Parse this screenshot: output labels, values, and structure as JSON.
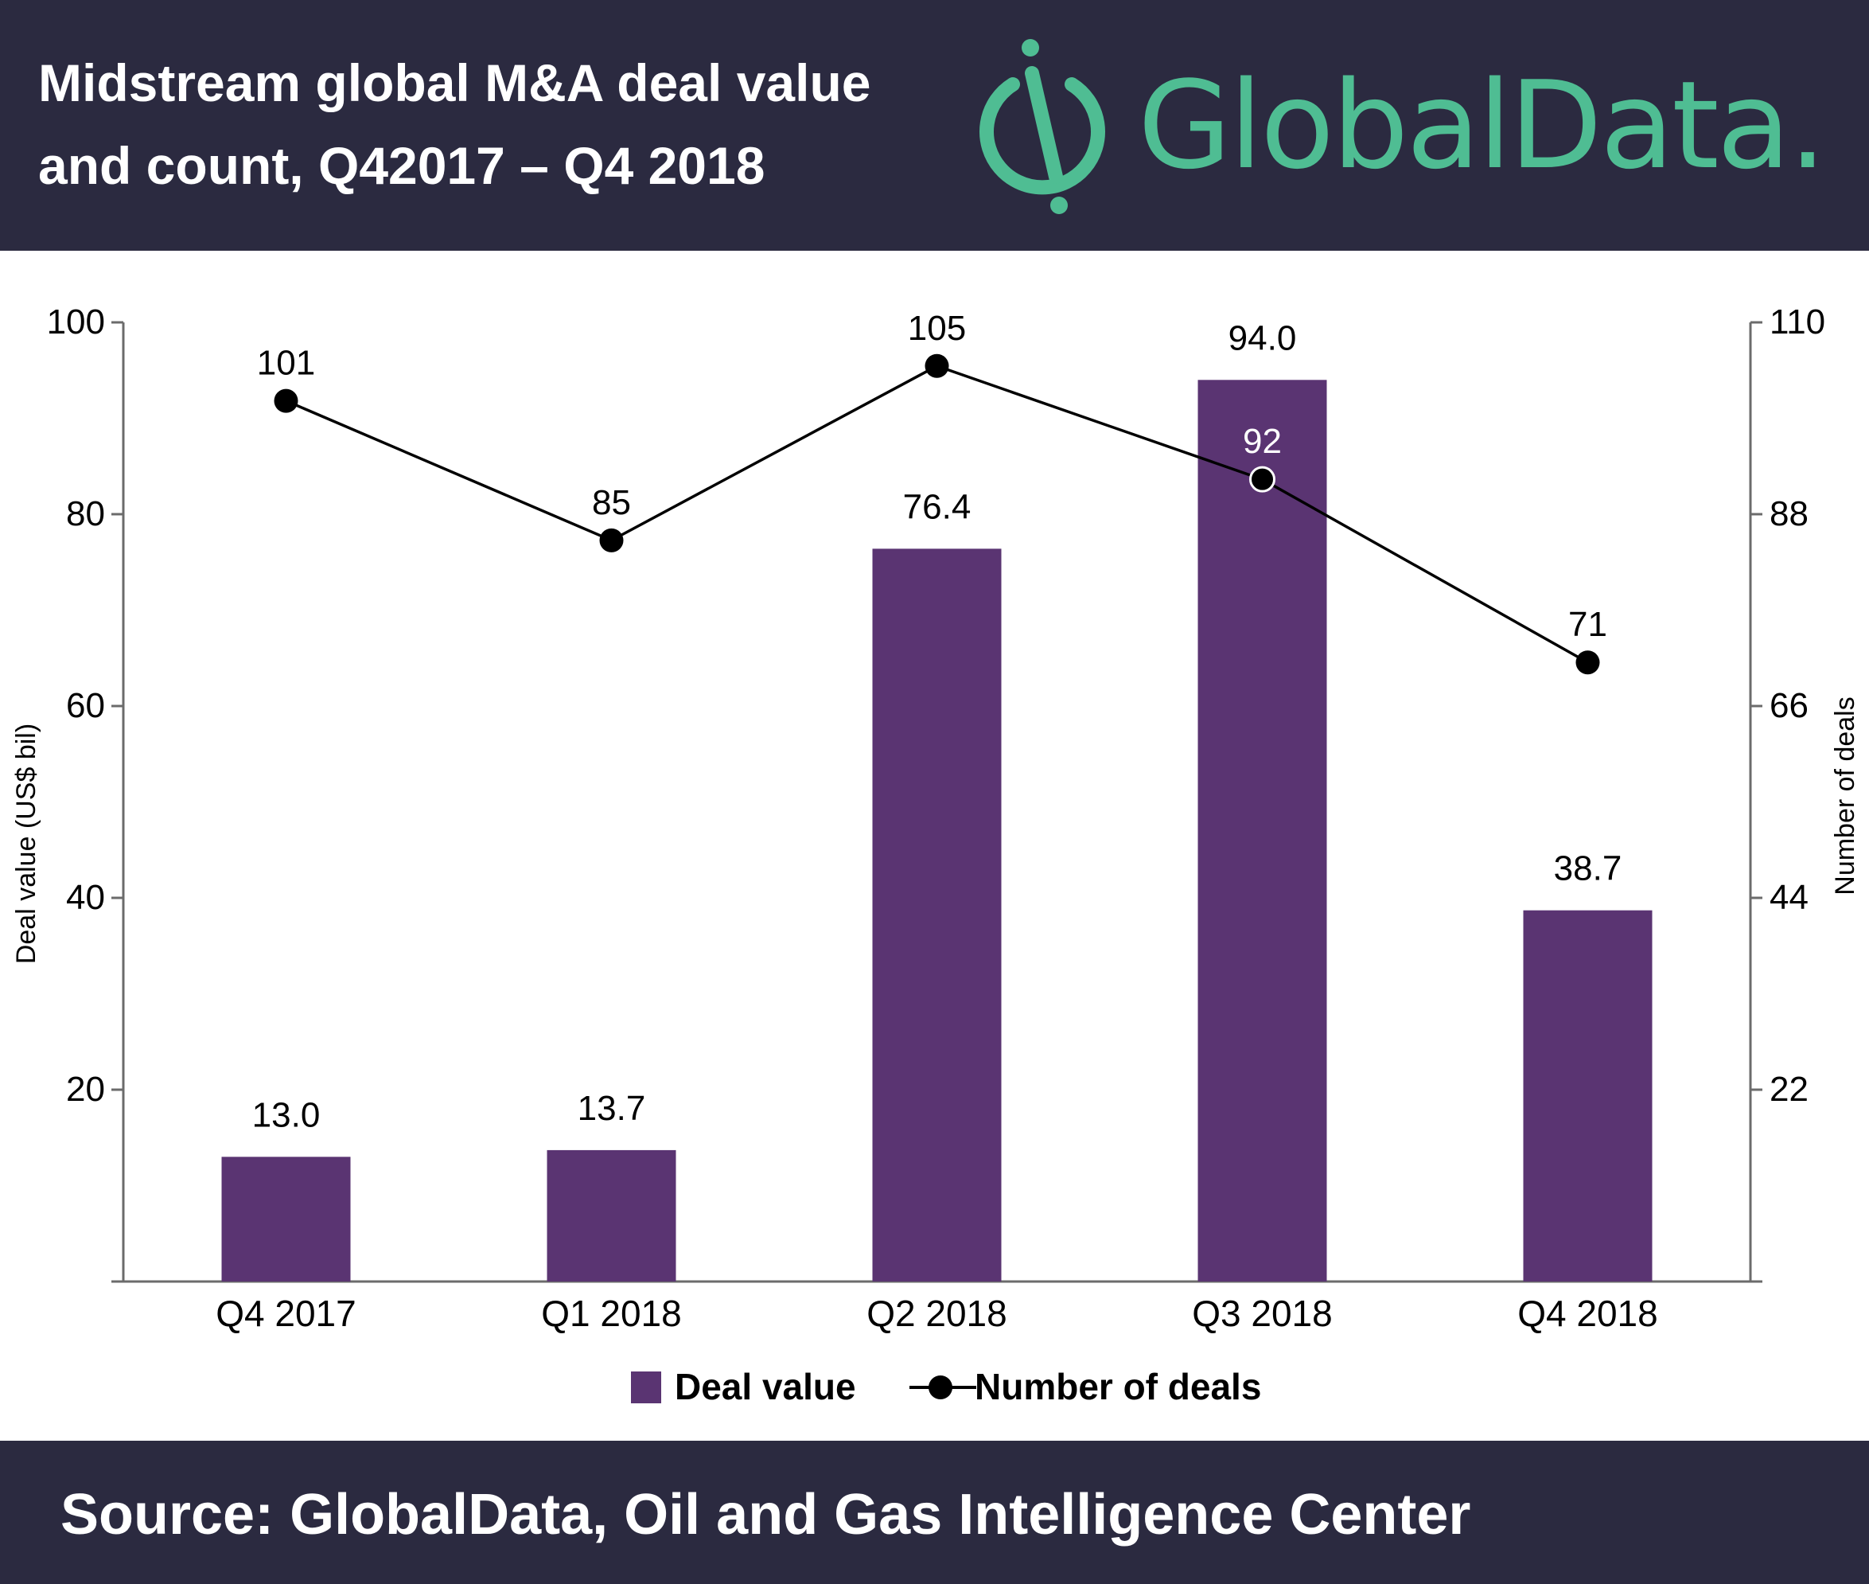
{
  "header": {
    "title_line1": "Midstream global M&A deal value",
    "title_line2": "and count, Q42017 – Q4 2018",
    "logo_text": "GlobalData."
  },
  "footer": {
    "source": "Source:  GlobalData, Oil and Gas Intelligence Center"
  },
  "colors": {
    "background_band": "#2b2a40",
    "bar": "#5a3472",
    "line": "#000000",
    "brand": "#4fbd93"
  },
  "chart_data": {
    "type": "bar",
    "categories": [
      "Q4 2017",
      "Q1 2018",
      "Q2 2018",
      "Q3 2018",
      "Q4 2018"
    ],
    "series": [
      {
        "name": "Deal value",
        "type": "bar",
        "axis": "left",
        "values": [
          13.0,
          13.7,
          76.4,
          94.0,
          38.7
        ],
        "labels": [
          "13.0",
          "13.7",
          "76.4",
          "94.0",
          "38.7"
        ]
      },
      {
        "name": "Number of deals",
        "type": "line",
        "axis": "right",
        "values": [
          101,
          85,
          105,
          92,
          71
        ],
        "labels": [
          "101",
          "85",
          "105",
          "92",
          "71"
        ]
      }
    ],
    "ylabel": "Deal value (US$ bil)",
    "y2label": "Number of deals",
    "ylim": [
      0,
      100
    ],
    "yticks": [
      20,
      40,
      60,
      80,
      100
    ],
    "y2lim": [
      0,
      110
    ],
    "y2ticks": [
      22,
      44,
      66,
      88,
      110
    ],
    "grid": false,
    "legend": "bottom-center"
  }
}
